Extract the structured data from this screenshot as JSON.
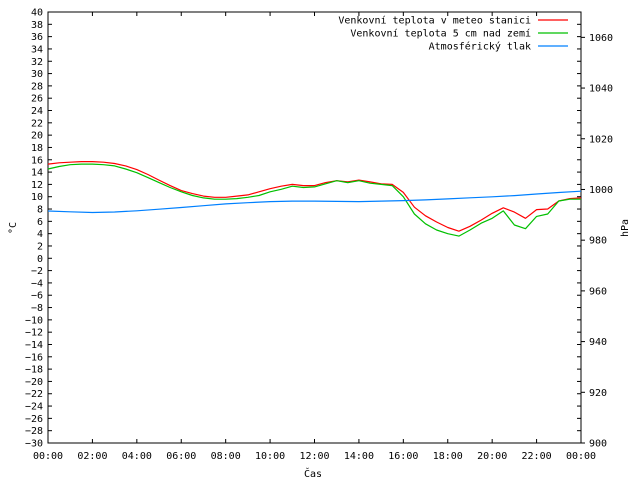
{
  "chart_data": {
    "type": "line",
    "title": "",
    "xlabel": "Čas",
    "ylabel": "°C",
    "y2label": "hPa",
    "xlim": [
      0,
      24
    ],
    "ylim": [
      -30,
      40
    ],
    "y2lim": [
      900,
      1070
    ],
    "x_tick_labels": [
      "00:00",
      "02:00",
      "04:00",
      "06:00",
      "08:00",
      "10:00",
      "12:00",
      "14:00",
      "16:00",
      "18:00",
      "20:00",
      "22:00",
      "00:00"
    ],
    "y_tick_step": 2,
    "y2_ticks": [
      900,
      920,
      940,
      960,
      980,
      1000,
      1020,
      1040,
      1060
    ],
    "grid": false,
    "legend_position": "top-right",
    "series": [
      {
        "name": "Venkovní teplota v meteo stanici",
        "color": "#ff0000",
        "axis": "left",
        "points": [
          [
            0,
            15.3
          ],
          [
            0.5,
            15.5
          ],
          [
            1,
            15.6
          ],
          [
            1.5,
            15.7
          ],
          [
            2,
            15.7
          ],
          [
            2.5,
            15.6
          ],
          [
            3,
            15.4
          ],
          [
            3.5,
            15.0
          ],
          [
            4,
            14.4
          ],
          [
            4.5,
            13.6
          ],
          [
            5,
            12.7
          ],
          [
            5.5,
            11.8
          ],
          [
            6,
            11.0
          ],
          [
            6.5,
            10.5
          ],
          [
            7,
            10.1
          ],
          [
            7.5,
            9.9
          ],
          [
            8,
            9.9
          ],
          [
            8.5,
            10.1
          ],
          [
            9,
            10.3
          ],
          [
            9.5,
            10.8
          ],
          [
            10,
            11.3
          ],
          [
            10.5,
            11.7
          ],
          [
            11,
            12.0
          ],
          [
            11.5,
            11.8
          ],
          [
            12,
            11.8
          ],
          [
            12.5,
            12.3
          ],
          [
            13,
            12.6
          ],
          [
            13.5,
            12.4
          ],
          [
            14,
            12.7
          ],
          [
            14.5,
            12.4
          ],
          [
            15,
            12.1
          ],
          [
            15.5,
            12.0
          ],
          [
            16,
            10.7
          ],
          [
            16.5,
            8.3
          ],
          [
            17,
            6.9
          ],
          [
            17.5,
            5.9
          ],
          [
            18,
            5.0
          ],
          [
            18.5,
            4.4
          ],
          [
            19,
            5.2
          ],
          [
            19.5,
            6.2
          ],
          [
            20,
            7.3
          ],
          [
            20.5,
            8.2
          ],
          [
            21,
            7.5
          ],
          [
            21.5,
            6.5
          ],
          [
            22,
            7.9
          ],
          [
            22.5,
            8.0
          ],
          [
            23,
            9.3
          ],
          [
            23.5,
            9.7
          ],
          [
            24,
            9.8
          ]
        ]
      },
      {
        "name": "Venkovní teplota 5 cm nad zemí",
        "color": "#00c000",
        "axis": "left",
        "points": [
          [
            0,
            14.5
          ],
          [
            0.5,
            14.9
          ],
          [
            1,
            15.2
          ],
          [
            1.5,
            15.3
          ],
          [
            2,
            15.3
          ],
          [
            2.5,
            15.2
          ],
          [
            3,
            15.0
          ],
          [
            3.5,
            14.5
          ],
          [
            4,
            13.9
          ],
          [
            4.5,
            13.1
          ],
          [
            5,
            12.3
          ],
          [
            5.5,
            11.5
          ],
          [
            6,
            10.8
          ],
          [
            6.5,
            10.2
          ],
          [
            7,
            9.8
          ],
          [
            7.5,
            9.6
          ],
          [
            8,
            9.6
          ],
          [
            8.5,
            9.7
          ],
          [
            9,
            9.9
          ],
          [
            9.5,
            10.2
          ],
          [
            10,
            10.8
          ],
          [
            10.5,
            11.2
          ],
          [
            11,
            11.7
          ],
          [
            11.5,
            11.5
          ],
          [
            12,
            11.6
          ],
          [
            12.5,
            12.1
          ],
          [
            13,
            12.6
          ],
          [
            13.5,
            12.3
          ],
          [
            14,
            12.6
          ],
          [
            14.5,
            12.2
          ],
          [
            15,
            12.0
          ],
          [
            15.5,
            11.8
          ],
          [
            16,
            10.0
          ],
          [
            16.5,
            7.2
          ],
          [
            17,
            5.6
          ],
          [
            17.5,
            4.6
          ],
          [
            18,
            4.0
          ],
          [
            18.5,
            3.6
          ],
          [
            19,
            4.6
          ],
          [
            19.5,
            5.7
          ],
          [
            20,
            6.5
          ],
          [
            20.5,
            7.7
          ],
          [
            21,
            5.4
          ],
          [
            21.5,
            4.8
          ],
          [
            22,
            6.8
          ],
          [
            22.5,
            7.2
          ],
          [
            23,
            9.3
          ],
          [
            23.5,
            9.6
          ],
          [
            24,
            9.6
          ]
        ]
      },
      {
        "name": "Atmosférický tlak",
        "color": "#0080ff",
        "axis": "right",
        "points": [
          [
            0,
            991.5
          ],
          [
            1,
            991.2
          ],
          [
            2,
            990.9
          ],
          [
            3,
            991.1
          ],
          [
            4,
            991.6
          ],
          [
            5,
            992.2
          ],
          [
            6,
            992.9
          ],
          [
            7,
            993.6
          ],
          [
            8,
            994.3
          ],
          [
            9,
            994.8
          ],
          [
            10,
            995.2
          ],
          [
            11,
            995.4
          ],
          [
            12,
            995.4
          ],
          [
            13,
            995.3
          ],
          [
            14,
            995.2
          ],
          [
            15,
            995.4
          ],
          [
            16,
            995.6
          ],
          [
            17,
            995.9
          ],
          [
            18,
            996.3
          ],
          [
            19,
            996.7
          ],
          [
            20,
            997.1
          ],
          [
            21,
            997.6
          ],
          [
            22,
            998.2
          ],
          [
            23,
            998.8
          ],
          [
            24,
            999.3
          ]
        ]
      }
    ]
  }
}
